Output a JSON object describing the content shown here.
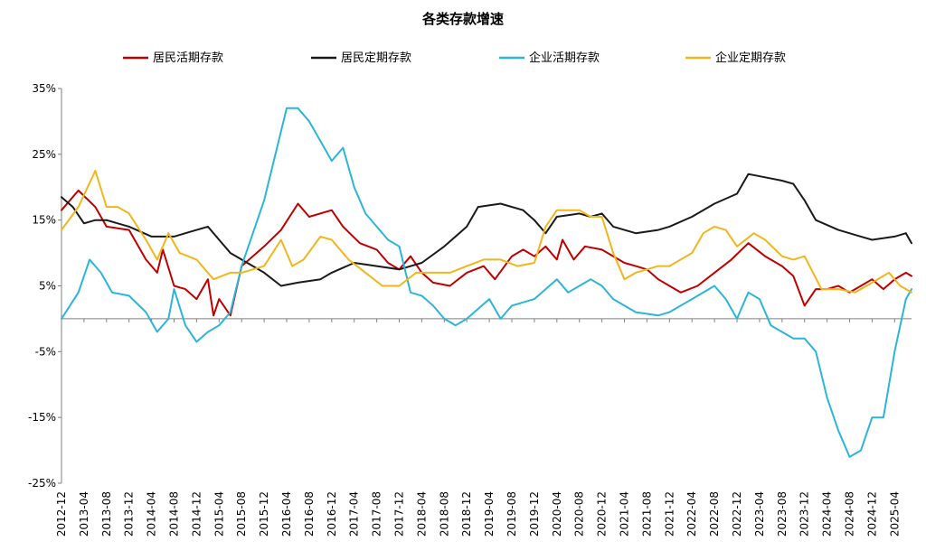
{
  "chart_data": {
    "type": "line",
    "title": "各类存款增速",
    "xlabel": "",
    "ylabel": "",
    "legend_position": "top",
    "ylim": [
      -25,
      35
    ],
    "yticks": [
      35,
      25,
      15,
      5,
      -5,
      -15,
      -25
    ],
    "ytick_labels": [
      "35%",
      "25%",
      "15%",
      "5%",
      "-5%",
      "-15%",
      "-25%"
    ],
    "xtick_labels": [
      "2012-12",
      "2013-04",
      "2013-08",
      "2013-12",
      "2014-04",
      "2014-08",
      "2014-12",
      "2015-04",
      "2015-08",
      "2015-12",
      "2016-04",
      "2016-08",
      "2016-12",
      "2017-04",
      "2017-08",
      "2017-12",
      "2018-04",
      "2018-08",
      "2018-12",
      "2019-04",
      "2019-08",
      "2019-12",
      "2020-04",
      "2020-08",
      "2020-12",
      "2021-04",
      "2021-08",
      "2021-12",
      "2022-04",
      "2022-08",
      "2022-12",
      "2023-04",
      "2023-08",
      "2023-12",
      "2024-04",
      "2024-08",
      "2024-12",
      "2025-04"
    ],
    "x_start": "2012-12",
    "x_end": "2025-07",
    "grid": false,
    "series": [
      {
        "name": "居民活期存款",
        "color": "#C00000",
        "points": [
          [
            "2012-12",
            16.5
          ],
          [
            "2013-03",
            19.5
          ],
          [
            "2013-06",
            17
          ],
          [
            "2013-08",
            14
          ],
          [
            "2013-12",
            13.5
          ],
          [
            "2014-03",
            9
          ],
          [
            "2014-05",
            7
          ],
          [
            "2014-06",
            10.5
          ],
          [
            "2014-08",
            5
          ],
          [
            "2014-10",
            4.5
          ],
          [
            "2014-12",
            3
          ],
          [
            "2015-02",
            6
          ],
          [
            "2015-03",
            0.5
          ],
          [
            "2015-04",
            3
          ],
          [
            "2015-06",
            0.5
          ],
          [
            "2015-08",
            8
          ],
          [
            "2015-12",
            11
          ],
          [
            "2016-03",
            13.5
          ],
          [
            "2016-06",
            17.5
          ],
          [
            "2016-08",
            15.5
          ],
          [
            "2016-12",
            16.5
          ],
          [
            "2017-02",
            14
          ],
          [
            "2017-05",
            11.5
          ],
          [
            "2017-08",
            10.5
          ],
          [
            "2017-10",
            8.5
          ],
          [
            "2017-12",
            7.5
          ],
          [
            "2018-02",
            9.5
          ],
          [
            "2018-04",
            7
          ],
          [
            "2018-06",
            5.5
          ],
          [
            "2018-09",
            5
          ],
          [
            "2018-12",
            7
          ],
          [
            "2019-03",
            8
          ],
          [
            "2019-05",
            6
          ],
          [
            "2019-08",
            9.5
          ],
          [
            "2019-10",
            10.5
          ],
          [
            "2019-12",
            9.5
          ],
          [
            "2020-02",
            11
          ],
          [
            "2020-04",
            9
          ],
          [
            "2020-05",
            12
          ],
          [
            "2020-07",
            9
          ],
          [
            "2020-09",
            11
          ],
          [
            "2020-12",
            10.5
          ],
          [
            "2021-02",
            9.5
          ],
          [
            "2021-04",
            8.5
          ],
          [
            "2021-06",
            8
          ],
          [
            "2021-08",
            7.5
          ],
          [
            "2021-10",
            6
          ],
          [
            "2021-12",
            5
          ],
          [
            "2022-02",
            4
          ],
          [
            "2022-05",
            5
          ],
          [
            "2022-08",
            7
          ],
          [
            "2022-11",
            9
          ],
          [
            "2023-02",
            11.5
          ],
          [
            "2023-05",
            9.5
          ],
          [
            "2023-08",
            8
          ],
          [
            "2023-10",
            6.5
          ],
          [
            "2023-12",
            2
          ],
          [
            "2024-02",
            4.5
          ],
          [
            "2024-04",
            4.5
          ],
          [
            "2024-06",
            5
          ],
          [
            "2024-08",
            4
          ],
          [
            "2024-10",
            5
          ],
          [
            "2024-12",
            6
          ],
          [
            "2025-02",
            4.5
          ],
          [
            "2025-04",
            6
          ],
          [
            "2025-06",
            7
          ],
          [
            "2025-07",
            6.5
          ]
        ]
      },
      {
        "name": "居民定期存款",
        "color": "#1A1A1A",
        "points": [
          [
            "2012-12",
            18.5
          ],
          [
            "2013-02",
            17
          ],
          [
            "2013-04",
            14.5
          ],
          [
            "2013-06",
            15
          ],
          [
            "2013-08",
            15
          ],
          [
            "2013-12",
            14
          ],
          [
            "2014-04",
            12.5
          ],
          [
            "2014-08",
            12.5
          ],
          [
            "2014-10",
            13
          ],
          [
            "2014-12",
            13.5
          ],
          [
            "2015-02",
            14
          ],
          [
            "2015-04",
            12
          ],
          [
            "2015-06",
            10
          ],
          [
            "2015-08",
            9
          ],
          [
            "2015-12",
            7
          ],
          [
            "2016-03",
            5
          ],
          [
            "2016-06",
            5.5
          ],
          [
            "2016-10",
            6
          ],
          [
            "2016-12",
            7
          ],
          [
            "2017-04",
            8.5
          ],
          [
            "2017-08",
            8
          ],
          [
            "2017-12",
            7.5
          ],
          [
            "2018-04",
            8.5
          ],
          [
            "2018-08",
            11
          ],
          [
            "2018-12",
            14
          ],
          [
            "2019-02",
            17
          ],
          [
            "2019-06",
            17.5
          ],
          [
            "2019-10",
            16.5
          ],
          [
            "2019-12",
            15
          ],
          [
            "2020-02",
            13
          ],
          [
            "2020-04",
            15.5
          ],
          [
            "2020-08",
            16
          ],
          [
            "2020-10",
            15.5
          ],
          [
            "2020-12",
            16
          ],
          [
            "2021-02",
            14
          ],
          [
            "2021-06",
            13
          ],
          [
            "2021-10",
            13.5
          ],
          [
            "2021-12",
            14
          ],
          [
            "2022-04",
            15.5
          ],
          [
            "2022-08",
            17.5
          ],
          [
            "2022-12",
            19
          ],
          [
            "2023-02",
            22
          ],
          [
            "2023-05",
            21.5
          ],
          [
            "2023-08",
            21
          ],
          [
            "2023-10",
            20.5
          ],
          [
            "2023-12",
            18
          ],
          [
            "2024-02",
            15
          ],
          [
            "2024-06",
            13.5
          ],
          [
            "2024-10",
            12.5
          ],
          [
            "2024-12",
            12
          ],
          [
            "2025-04",
            12.5
          ],
          [
            "2025-06",
            13
          ],
          [
            "2025-07",
            11.5
          ]
        ]
      },
      {
        "name": "企业活期存款",
        "color": "#2CB5D9",
        "points": [
          [
            "2012-12",
            0
          ],
          [
            "2013-03",
            4
          ],
          [
            "2013-05",
            9
          ],
          [
            "2013-07",
            7
          ],
          [
            "2013-09",
            4
          ],
          [
            "2013-12",
            3.5
          ],
          [
            "2014-03",
            1
          ],
          [
            "2014-05",
            -2
          ],
          [
            "2014-07",
            0
          ],
          [
            "2014-08",
            4.5
          ],
          [
            "2014-10",
            -1
          ],
          [
            "2014-12",
            -3.5
          ],
          [
            "2015-02",
            -2
          ],
          [
            "2015-04",
            -1
          ],
          [
            "2015-06",
            1
          ],
          [
            "2015-08",
            8
          ],
          [
            "2015-12",
            18
          ],
          [
            "2016-02",
            25
          ],
          [
            "2016-04",
            32
          ],
          [
            "2016-06",
            32
          ],
          [
            "2016-08",
            30
          ],
          [
            "2016-10",
            27
          ],
          [
            "2016-12",
            24
          ],
          [
            "2017-02",
            26
          ],
          [
            "2017-04",
            20
          ],
          [
            "2017-06",
            16
          ],
          [
            "2017-08",
            14
          ],
          [
            "2017-10",
            12
          ],
          [
            "2017-12",
            11
          ],
          [
            "2018-02",
            4
          ],
          [
            "2018-04",
            3.5
          ],
          [
            "2018-06",
            2
          ],
          [
            "2018-08",
            0
          ],
          [
            "2018-10",
            -1
          ],
          [
            "2018-12",
            0
          ],
          [
            "2019-04",
            3
          ],
          [
            "2019-06",
            0
          ],
          [
            "2019-08",
            2
          ],
          [
            "2019-12",
            3
          ],
          [
            "2020-04",
            6
          ],
          [
            "2020-06",
            4
          ],
          [
            "2020-08",
            5
          ],
          [
            "2020-10",
            6
          ],
          [
            "2020-12",
            5
          ],
          [
            "2021-02",
            3
          ],
          [
            "2021-06",
            1
          ],
          [
            "2021-10",
            0.5
          ],
          [
            "2021-12",
            1
          ],
          [
            "2022-04",
            3
          ],
          [
            "2022-08",
            5
          ],
          [
            "2022-10",
            3
          ],
          [
            "2022-12",
            0
          ],
          [
            "2023-02",
            4
          ],
          [
            "2023-04",
            3
          ],
          [
            "2023-06",
            -1
          ],
          [
            "2023-10",
            -3
          ],
          [
            "2023-12",
            -3
          ],
          [
            "2024-02",
            -5
          ],
          [
            "2024-04",
            -12
          ],
          [
            "2024-06",
            -17
          ],
          [
            "2024-08",
            -21
          ],
          [
            "2024-10",
            -20
          ],
          [
            "2024-12",
            -15
          ],
          [
            "2025-02",
            -15
          ],
          [
            "2025-04",
            -5
          ],
          [
            "2025-06",
            3
          ],
          [
            "2025-07",
            4.5
          ]
        ]
      },
      {
        "name": "企业定期存款",
        "color": "#F2B61C",
        "points": [
          [
            "2012-12",
            13.5
          ],
          [
            "2013-03",
            17
          ],
          [
            "2013-06",
            22.5
          ],
          [
            "2013-08",
            17
          ],
          [
            "2013-10",
            17
          ],
          [
            "2013-12",
            16
          ],
          [
            "2014-03",
            12
          ],
          [
            "2014-05",
            9
          ],
          [
            "2014-07",
            13
          ],
          [
            "2014-09",
            10
          ],
          [
            "2014-12",
            9
          ],
          [
            "2015-03",
            6
          ],
          [
            "2015-06",
            7
          ],
          [
            "2015-08",
            7
          ],
          [
            "2015-12",
            8
          ],
          [
            "2016-03",
            12
          ],
          [
            "2016-05",
            8
          ],
          [
            "2016-07",
            9
          ],
          [
            "2016-10",
            12.5
          ],
          [
            "2016-12",
            12
          ],
          [
            "2017-03",
            9
          ],
          [
            "2017-06",
            7
          ],
          [
            "2017-09",
            5
          ],
          [
            "2017-12",
            5
          ],
          [
            "2018-03",
            7
          ],
          [
            "2018-06",
            7
          ],
          [
            "2018-09",
            7
          ],
          [
            "2018-12",
            8
          ],
          [
            "2019-03",
            9
          ],
          [
            "2019-06",
            9
          ],
          [
            "2019-09",
            8
          ],
          [
            "2019-12",
            8.5
          ],
          [
            "2020-02",
            14
          ],
          [
            "2020-04",
            16.5
          ],
          [
            "2020-08",
            16.5
          ],
          [
            "2020-10",
            15.5
          ],
          [
            "2020-12",
            15.5
          ],
          [
            "2021-02",
            10
          ],
          [
            "2021-04",
            6
          ],
          [
            "2021-06",
            7
          ],
          [
            "2021-10",
            8
          ],
          [
            "2021-12",
            8
          ],
          [
            "2022-04",
            10
          ],
          [
            "2022-06",
            13
          ],
          [
            "2022-08",
            14
          ],
          [
            "2022-10",
            13.5
          ],
          [
            "2022-12",
            11
          ],
          [
            "2023-03",
            13
          ],
          [
            "2023-05",
            12
          ],
          [
            "2023-08",
            9.5
          ],
          [
            "2023-10",
            9
          ],
          [
            "2023-12",
            9.5
          ],
          [
            "2024-03",
            4.5
          ],
          [
            "2024-06",
            4.5
          ],
          [
            "2024-09",
            4
          ],
          [
            "2024-12",
            5.5
          ],
          [
            "2025-03",
            7
          ],
          [
            "2025-05",
            5
          ],
          [
            "2025-07",
            4
          ]
        ]
      }
    ]
  }
}
